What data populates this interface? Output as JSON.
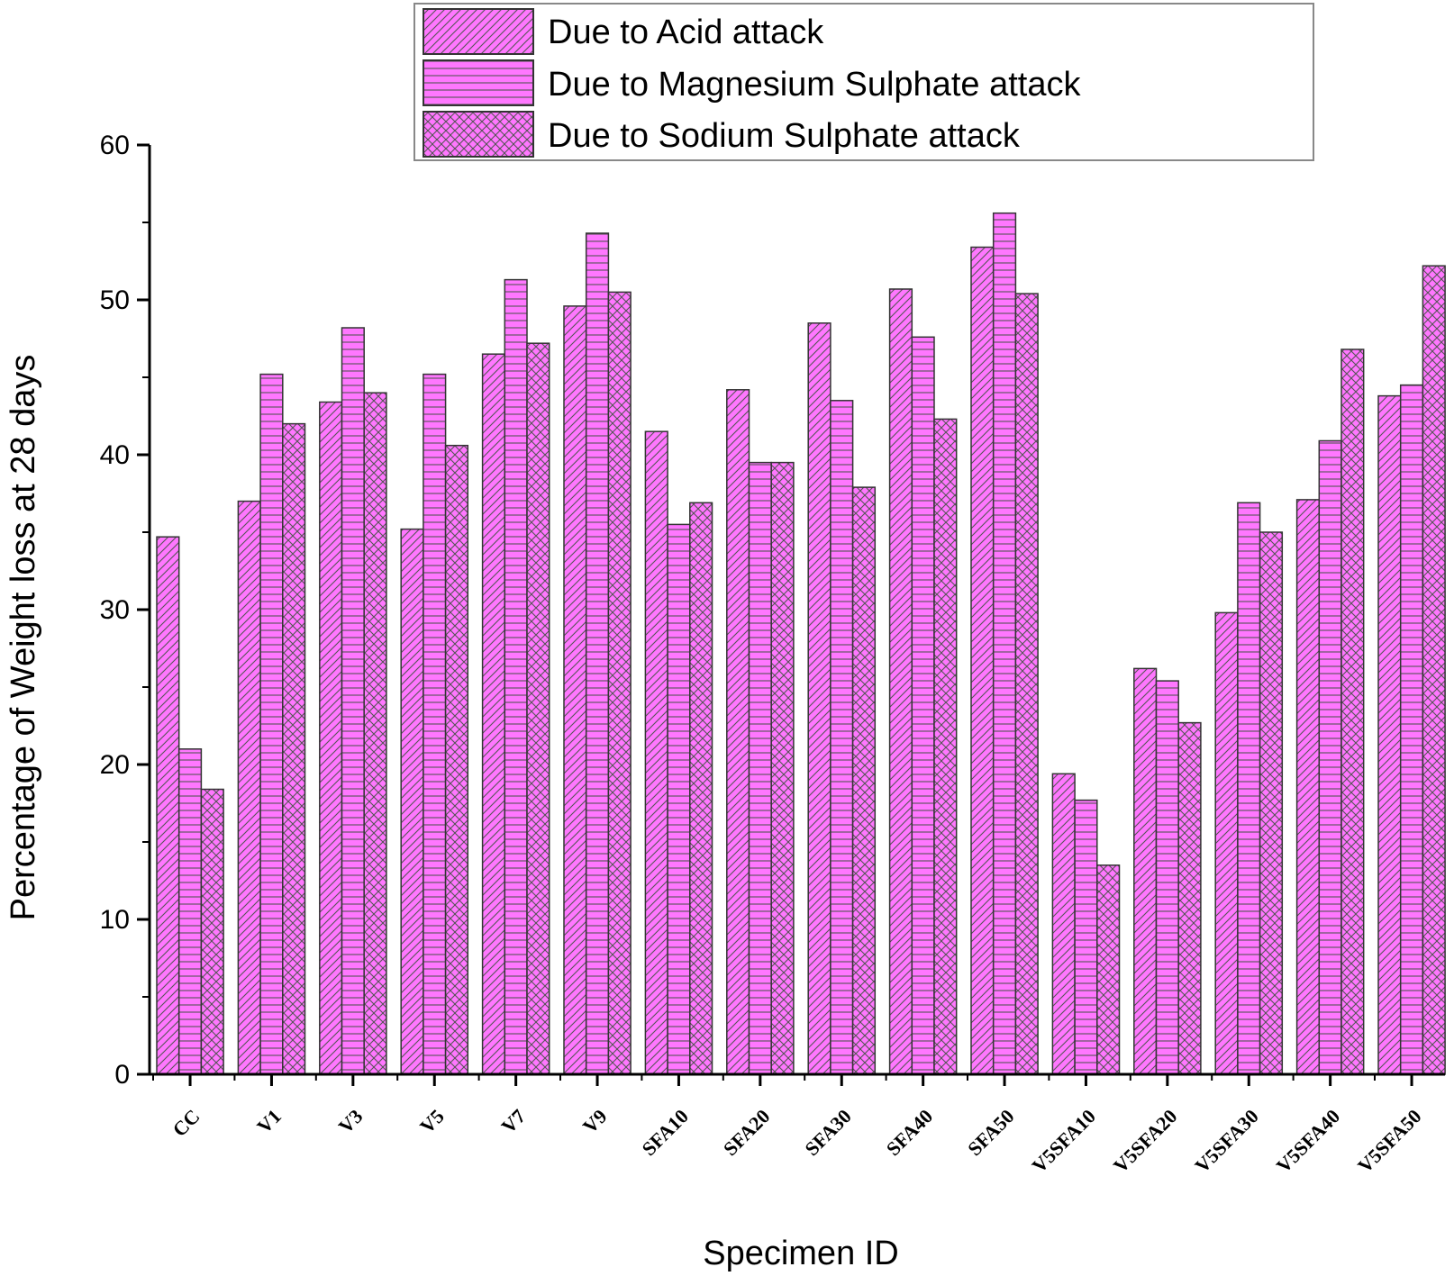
{
  "chart_data": {
    "type": "bar",
    "xlabel": "Specimen ID",
    "ylabel": "Percentage of Weight loss at 28 days",
    "ylim": [
      0,
      60
    ],
    "yticks": [
      0,
      10,
      20,
      30,
      40,
      50,
      60
    ],
    "legend_position": "top",
    "bar_color": "#ff77ff",
    "categories": [
      "CC",
      "V1",
      "V3",
      "V5",
      "V7",
      "V9",
      "SFA10",
      "SFA20",
      "SFA30",
      "SFA40",
      "SFA50",
      "V5SFA10",
      "V5SFA20",
      "V5SFA30",
      "V5SFA40",
      "V5SFA50"
    ],
    "series": [
      {
        "name": "Due to Acid attack",
        "pattern": "diagonal-hatch",
        "values": [
          34.7,
          37.0,
          43.4,
          35.2,
          46.5,
          49.6,
          41.5,
          44.2,
          48.5,
          50.7,
          53.4,
          19.4,
          26.2,
          29.8,
          37.1,
          43.8
        ]
      },
      {
        "name": "Due to Magnesium Sulphate attack",
        "pattern": "horizontal-lines",
        "values": [
          21.0,
          45.2,
          48.2,
          45.2,
          51.3,
          54.3,
          35.5,
          39.5,
          43.5,
          47.6,
          55.6,
          17.7,
          25.4,
          36.9,
          40.9,
          44.5
        ]
      },
      {
        "name": "Due to Sodium Sulphate attack",
        "pattern": "cross-hatch",
        "values": [
          18.4,
          42.0,
          44.0,
          40.6,
          47.2,
          50.5,
          36.9,
          39.5,
          37.9,
          42.3,
          50.4,
          13.5,
          22.7,
          35.0,
          46.8,
          52.2
        ]
      }
    ]
  }
}
